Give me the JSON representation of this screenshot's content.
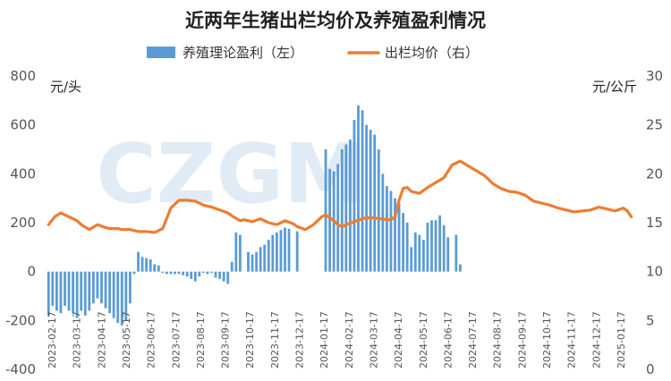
{
  "chart_data": {
    "type": "bar+line",
    "title": "近两年生猪出栏均价及养殖盈利情况",
    "legend": {
      "placement": "top",
      "items": [
        "养殖理论盈利（左）",
        "出栏均价（右）"
      ]
    },
    "units": {
      "left": "元/头",
      "right": "元/公斤"
    },
    "watermark": "CZGM",
    "left_axis": {
      "min": -400,
      "max": 800,
      "ticks": [
        800,
        600,
        400,
        200,
        0,
        -200,
        -400
      ]
    },
    "right_axis": {
      "min": 0,
      "max": 30,
      "ticks": [
        30,
        25,
        20,
        15,
        10,
        5,
        0
      ]
    },
    "grid": false,
    "x_labels": [
      "2023-02-17",
      "2023-03-17",
      "2023-04-17",
      "2023-05-17",
      "2023-06-17",
      "2023-07-17",
      "2023-08-17",
      "2023-09-17",
      "2023-10-17",
      "2023-11-17",
      "2023-12-17",
      "2024-01-17",
      "2024-02-17",
      "2024-03-17",
      "2024-04-17",
      "2024-05-17",
      "2024-06-17",
      "2024-07-17",
      "2024-08-17",
      "2024-09-17",
      "2024-10-17",
      "2024-11-17",
      "2024-12-17",
      "2025-01-17"
    ],
    "series": [
      {
        "name": "养殖理论盈利（左）",
        "axis": "left",
        "color": "#5b9bd5",
        "values": [
          -180,
          -140,
          -160,
          -170,
          -140,
          -160,
          -170,
          -190,
          -160,
          -180,
          -160,
          -130,
          -110,
          -130,
          -150,
          -170,
          -190,
          -210,
          -220,
          -200,
          -130,
          -10,
          80,
          60,
          55,
          50,
          30,
          25,
          -5,
          -10,
          -10,
          -10,
          -10,
          -15,
          -20,
          -30,
          -40,
          -20,
          -5,
          -10,
          -5,
          -25,
          -30,
          -40,
          -50,
          40,
          160,
          150,
          0,
          80,
          70,
          80,
          100,
          110,
          130,
          150,
          160,
          170,
          180,
          175,
          0,
          165,
          0,
          0,
          0,
          0,
          0,
          0,
          500,
          420,
          410,
          440,
          500,
          520,
          540,
          620,
          680,
          660,
          600,
          580,
          560,
          500,
          400,
          350,
          330,
          300,
          280,
          240,
          200,
          100,
          160,
          150,
          130,
          200,
          210,
          210,
          230,
          190,
          140,
          0,
          150,
          30
        ]
      },
      {
        "name": "出栏均价（右）",
        "axis": "right",
        "color": "#ed7d31",
        "x": [
          0,
          1.5,
          3,
          5,
          7,
          8,
          10,
          12,
          14,
          15,
          17,
          18,
          20,
          22,
          24,
          26,
          28,
          30,
          32,
          34,
          36,
          38,
          40,
          42,
          44,
          45,
          47,
          48,
          50,
          52,
          54,
          56,
          58,
          60,
          61,
          63,
          65,
          67,
          68,
          70,
          71,
          72,
          73,
          75,
          77,
          78,
          80,
          81,
          82,
          83,
          84,
          85,
          86,
          87,
          88,
          89,
          91,
          93,
          95,
          97,
          99,
          101,
          103,
          105,
          107,
          109,
          111,
          113,
          115,
          117,
          119,
          121,
          123,
          125,
          127,
          129,
          131,
          133,
          135,
          137,
          139,
          141,
          142,
          143
        ],
        "values": [
          14.8,
          15.6,
          16.0,
          15.6,
          15.2,
          14.8,
          14.3,
          14.8,
          14.5,
          14.4,
          14.4,
          14.3,
          14.3,
          14.1,
          14.1,
          14.0,
          14.4,
          16.5,
          17.3,
          17.3,
          17.2,
          16.8,
          16.6,
          16.3,
          16.0,
          15.7,
          15.2,
          15.3,
          15.1,
          15.4,
          15.0,
          14.8,
          15.2,
          14.9,
          14.6,
          14.3,
          14.8,
          15.6,
          15.8,
          15.2,
          14.8,
          14.6,
          14.8,
          15.1,
          15.4,
          15.5,
          15.5,
          15.4,
          15.4,
          15.3,
          15.3,
          15.6,
          17.3,
          18.5,
          18.6,
          18.2,
          18.0,
          18.6,
          19.1,
          19.6,
          20.9,
          21.3,
          20.8,
          20.3,
          19.8,
          19.0,
          18.5,
          18.2,
          18.1,
          17.8,
          17.2,
          17.0,
          16.8,
          16.5,
          16.3,
          16.1,
          16.2,
          16.3,
          16.6,
          16.4,
          16.2,
          16.5,
          16.2,
          15.6
        ]
      }
    ],
    "x_count": 144
  }
}
